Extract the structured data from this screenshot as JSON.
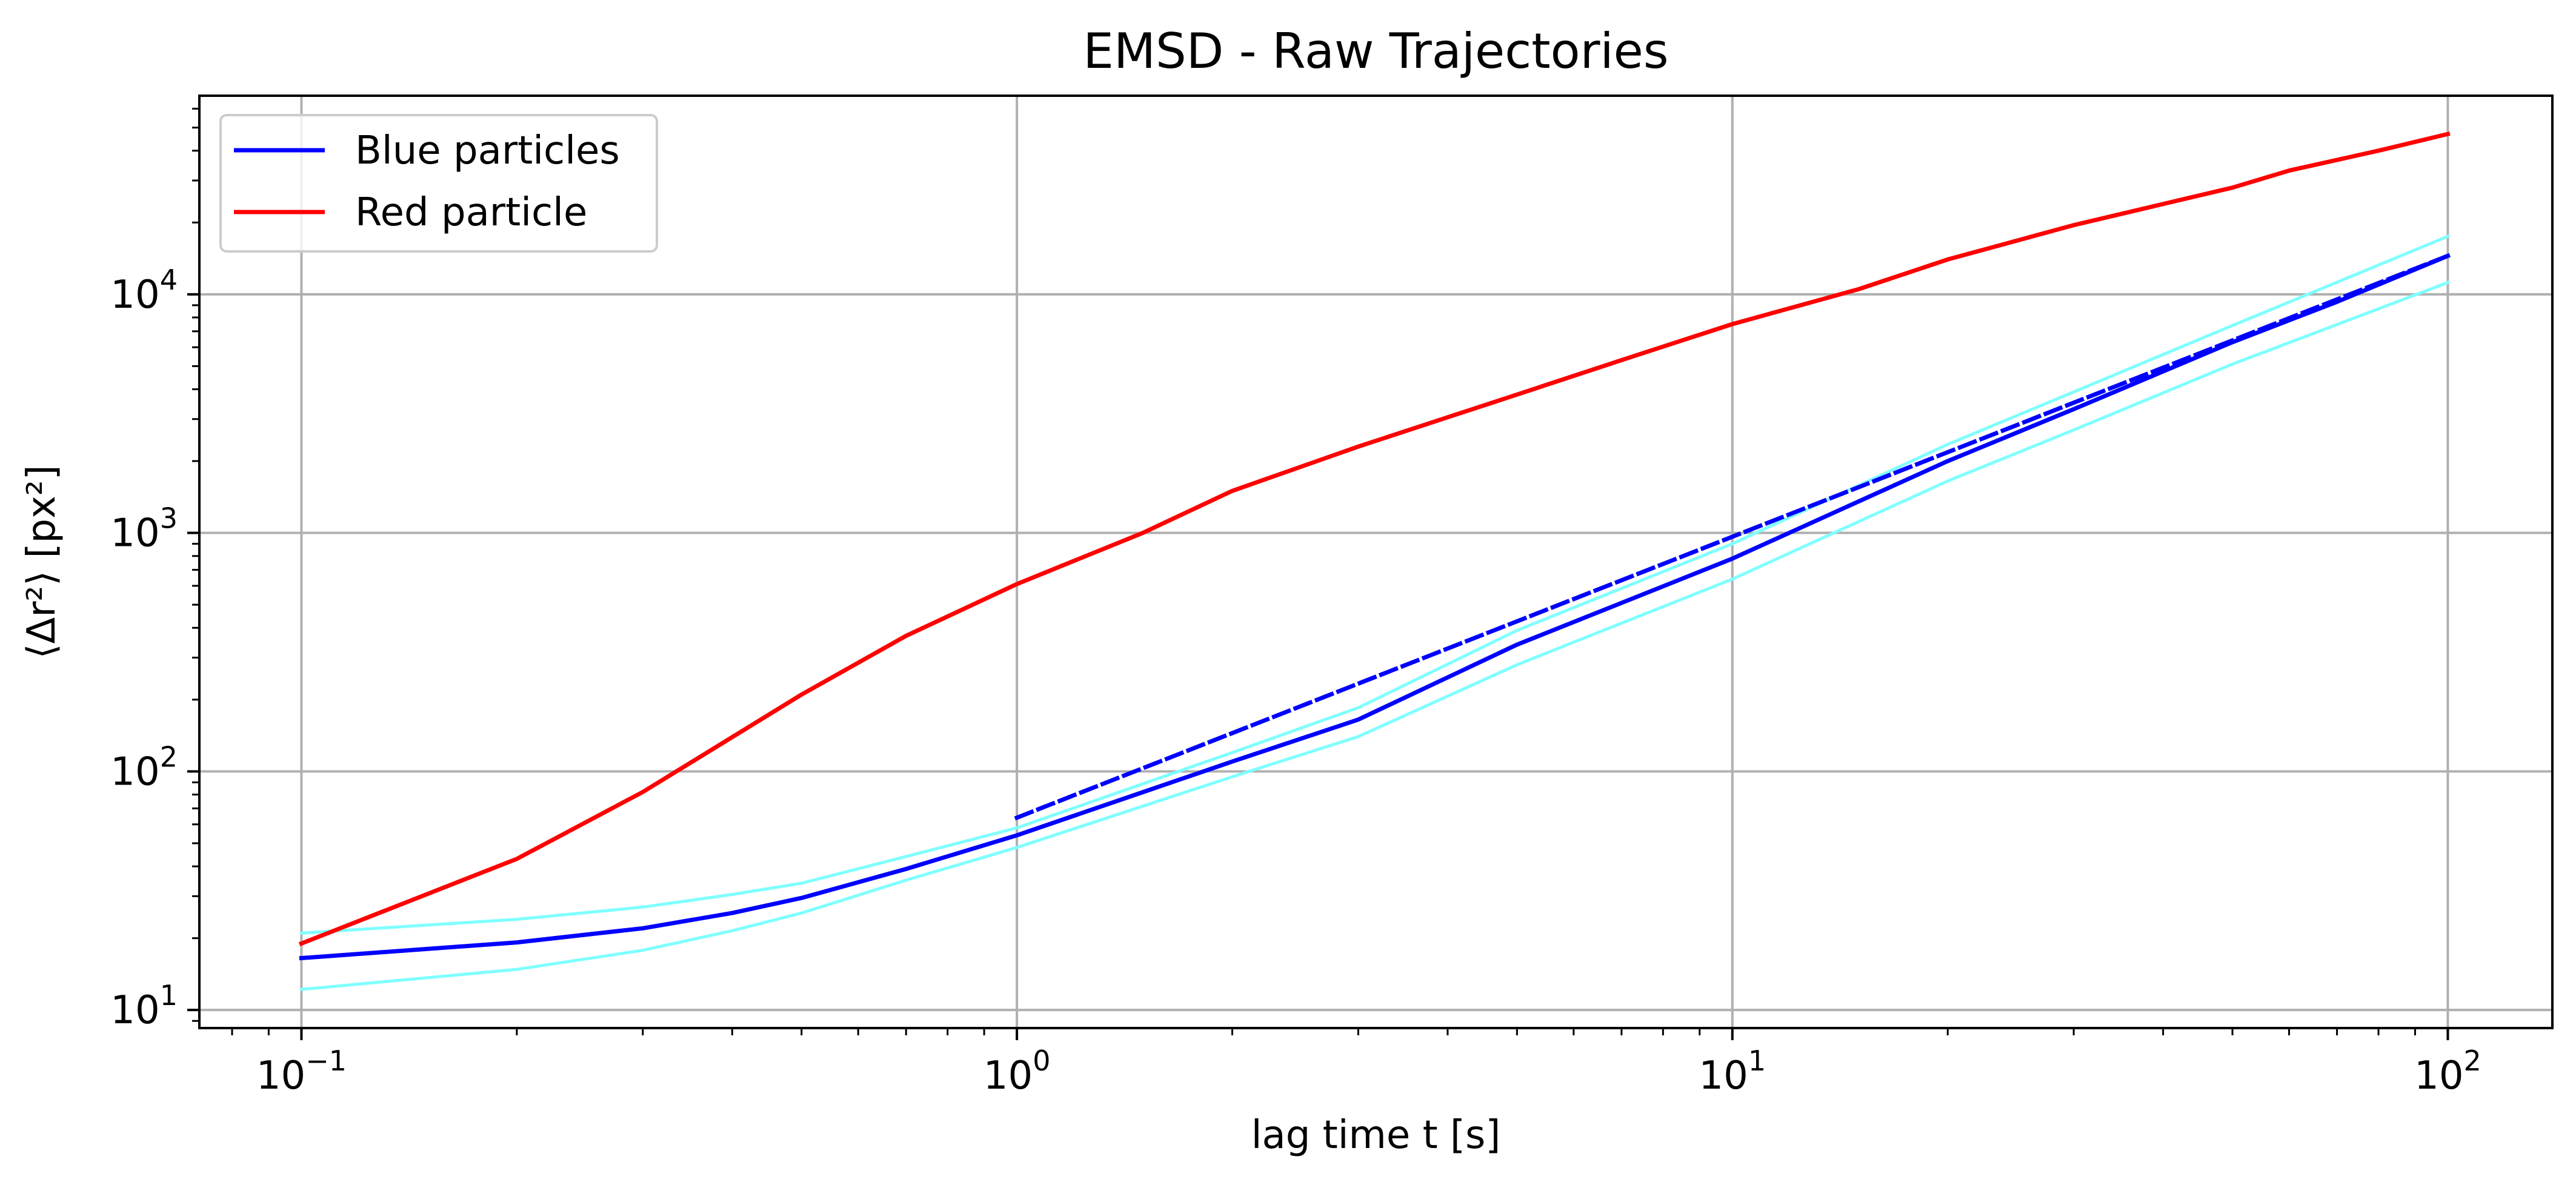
{
  "chart_data": {
    "type": "line",
    "title": "EMSD - Raw Trajectories",
    "xlabel": "lag time t [s]",
    "ylabel": "⟨Δr²⟩ [px²]",
    "xscale": "log",
    "yscale": "log",
    "xlim": [
      0.072,
      140
    ],
    "ylim": [
      8.4,
      68000
    ],
    "grid": true,
    "legend_position": "top-left",
    "x_ticks": [
      0.1,
      1,
      10,
      100
    ],
    "x_tick_labels": [
      {
        "base": "10",
        "exp": "−1"
      },
      {
        "base": "10",
        "exp": "0"
      },
      {
        "base": "10",
        "exp": "1"
      },
      {
        "base": "10",
        "exp": "2"
      }
    ],
    "y_ticks": [
      10,
      100,
      1000,
      10000
    ],
    "y_tick_labels": [
      {
        "base": "10",
        "exp": "1"
      },
      {
        "base": "10",
        "exp": "2"
      },
      {
        "base": "10",
        "exp": "3"
      },
      {
        "base": "10",
        "exp": "4"
      }
    ],
    "series": [
      {
        "name": "Blue particles",
        "in_legend": true,
        "color": "#0000ff",
        "style": "solid",
        "x": [
          0.1,
          0.2,
          0.3,
          0.4,
          0.5,
          0.7,
          1,
          2,
          3,
          5,
          10,
          20,
          30,
          50,
          70,
          100
        ],
        "y": [
          16.5,
          19.2,
          22,
          25.5,
          29.5,
          39,
          54,
          110,
          165,
          340,
          780,
          2000,
          3300,
          6300,
          9300,
          14500
        ]
      },
      {
        "name": "Red particle",
        "in_legend": true,
        "color": "#ff0000",
        "style": "solid",
        "x": [
          0.1,
          0.2,
          0.3,
          0.5,
          0.7,
          1,
          1.5,
          2,
          3,
          5,
          7,
          10,
          15,
          20,
          30,
          50,
          60,
          80,
          100
        ],
        "y": [
          19,
          43,
          82,
          210,
          370,
          610,
          1000,
          1500,
          2300,
          3800,
          5300,
          7500,
          10500,
          14000,
          19500,
          28000,
          33000,
          40000,
          47000
        ]
      },
      {
        "name": "",
        "in_legend": false,
        "color": "#7fffff",
        "style": "solid",
        "x": [
          0.1,
          0.2,
          0.3,
          0.4,
          0.5,
          0.7,
          1,
          2,
          3,
          5,
          10,
          20,
          30,
          50,
          100
        ],
        "y": [
          21,
          24,
          27,
          30.5,
          34,
          44,
          58,
          120,
          185,
          390,
          900,
          2350,
          3900,
          7400,
          17500
        ]
      },
      {
        "name": "",
        "in_legend": false,
        "color": "#7fffff",
        "style": "solid",
        "x": [
          0.1,
          0.2,
          0.3,
          0.4,
          0.5,
          0.7,
          1,
          2,
          3,
          5,
          10,
          20,
          30,
          50,
          100
        ],
        "y": [
          12.2,
          14.8,
          17.8,
          21.5,
          25.5,
          35,
          48,
          95,
          140,
          280,
          640,
          1650,
          2700,
          5100,
          11200
        ]
      },
      {
        "name": "",
        "in_legend": false,
        "color": "#0000ff",
        "style": "dashed",
        "x": [
          1,
          100
        ],
        "y": [
          64,
          14500
        ]
      }
    ]
  }
}
